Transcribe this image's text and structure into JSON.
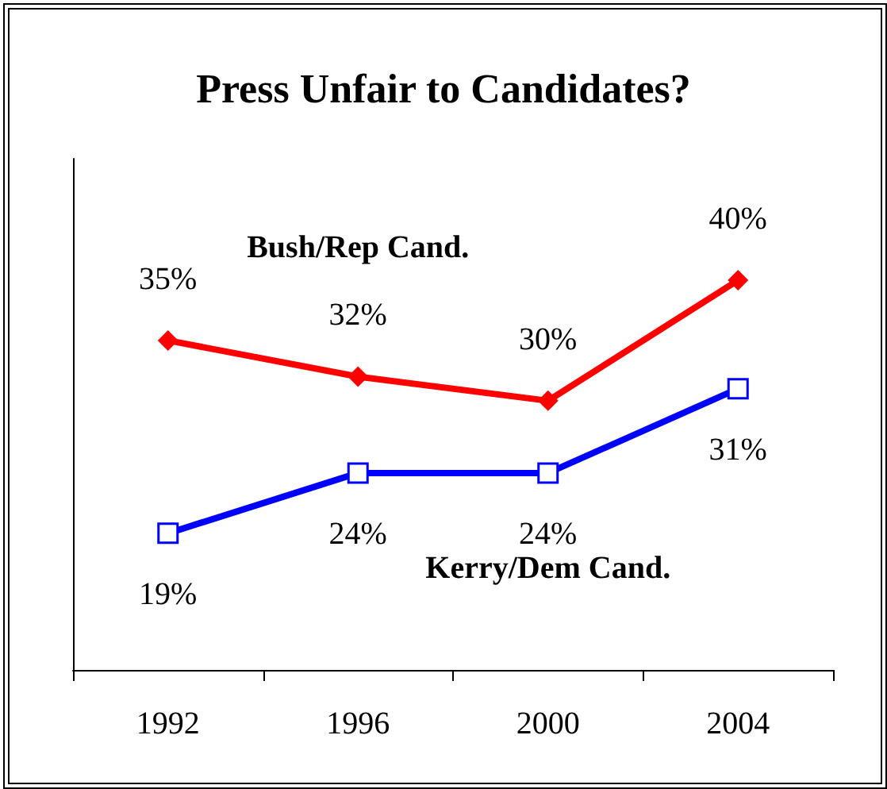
{
  "chart_data": {
    "type": "line",
    "title": "Press Unfair to Candidates?",
    "categories": [
      "1992",
      "1996",
      "2000",
      "2004"
    ],
    "series": [
      {
        "name": "Bush/Rep Cand.",
        "color": "#ff0000",
        "marker": "diamond",
        "values": [
          35,
          32,
          30,
          40
        ],
        "value_labels": [
          "35%",
          "32%",
          "30%",
          "40%"
        ]
      },
      {
        "name": "Kerry/Dem Cand.",
        "color": "#0000ff",
        "marker": "square",
        "values": [
          19,
          24,
          24,
          31
        ],
        "value_labels": [
          "19%",
          "24%",
          "24%",
          "31%"
        ]
      }
    ],
    "tick_labels": "x",
    "grid": false,
    "legend": false
  }
}
